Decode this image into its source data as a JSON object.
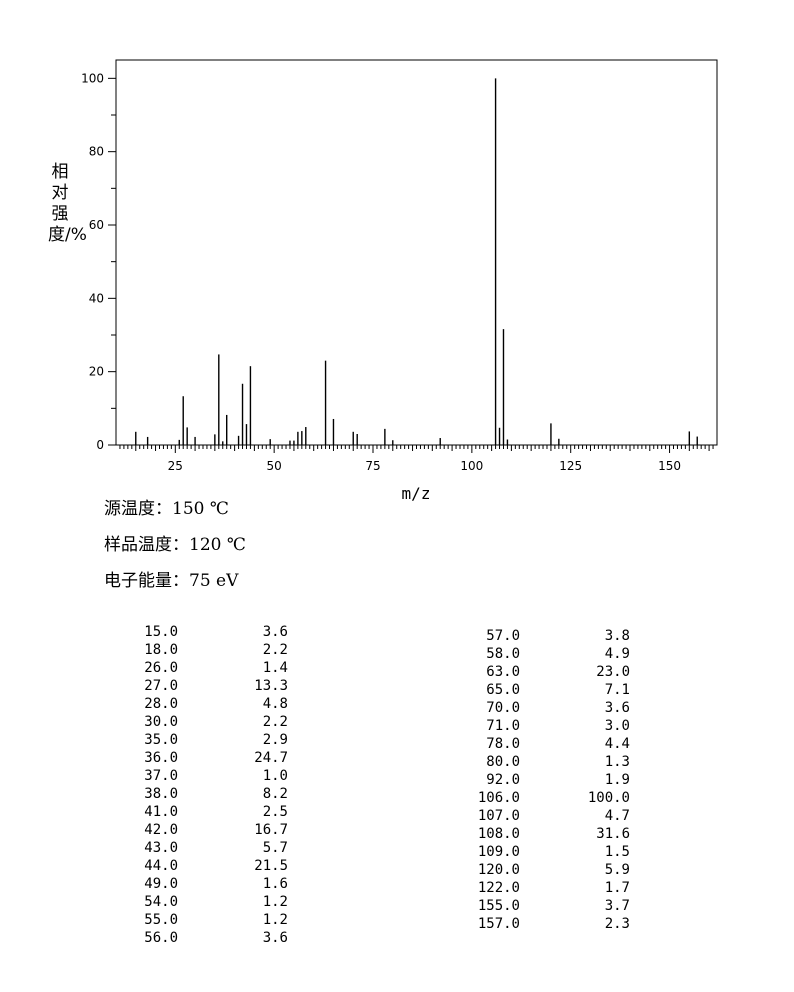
{
  "chart_data": {
    "type": "bar",
    "ylabel": "相对强度/%",
    "xlabel": "m/z",
    "xlim": [
      10,
      162
    ],
    "ylim": [
      0,
      105
    ],
    "x_ticks": [
      "25",
      "50",
      "75",
      "100",
      "125",
      "150"
    ],
    "y_ticks": [
      "0",
      "20",
      "40",
      "60",
      "80",
      "100"
    ],
    "peaks": [
      {
        "mz": 15.0,
        "intensity": 3.6
      },
      {
        "mz": 18.0,
        "intensity": 2.2
      },
      {
        "mz": 26.0,
        "intensity": 1.4
      },
      {
        "mz": 27.0,
        "intensity": 13.3
      },
      {
        "mz": 28.0,
        "intensity": 4.8
      },
      {
        "mz": 30.0,
        "intensity": 2.2
      },
      {
        "mz": 35.0,
        "intensity": 2.9
      },
      {
        "mz": 36.0,
        "intensity": 24.7
      },
      {
        "mz": 37.0,
        "intensity": 1.0
      },
      {
        "mz": 38.0,
        "intensity": 8.2
      },
      {
        "mz": 41.0,
        "intensity": 2.5
      },
      {
        "mz": 42.0,
        "intensity": 16.7
      },
      {
        "mz": 43.0,
        "intensity": 5.7
      },
      {
        "mz": 44.0,
        "intensity": 21.5
      },
      {
        "mz": 49.0,
        "intensity": 1.6
      },
      {
        "mz": 54.0,
        "intensity": 1.2
      },
      {
        "mz": 55.0,
        "intensity": 1.2
      },
      {
        "mz": 56.0,
        "intensity": 3.6
      },
      {
        "mz": 57.0,
        "intensity": 3.8
      },
      {
        "mz": 58.0,
        "intensity": 4.9
      },
      {
        "mz": 63.0,
        "intensity": 23.0
      },
      {
        "mz": 65.0,
        "intensity": 7.1
      },
      {
        "mz": 70.0,
        "intensity": 3.6
      },
      {
        "mz": 71.0,
        "intensity": 3.0
      },
      {
        "mz": 78.0,
        "intensity": 4.4
      },
      {
        "mz": 80.0,
        "intensity": 1.3
      },
      {
        "mz": 92.0,
        "intensity": 1.9
      },
      {
        "mz": 106.0,
        "intensity": 100.0
      },
      {
        "mz": 107.0,
        "intensity": 4.7
      },
      {
        "mz": 108.0,
        "intensity": 31.6
      },
      {
        "mz": 109.0,
        "intensity": 1.5
      },
      {
        "mz": 120.0,
        "intensity": 5.9
      },
      {
        "mz": 122.0,
        "intensity": 1.7
      },
      {
        "mz": 155.0,
        "intensity": 3.7
      },
      {
        "mz": 157.0,
        "intensity": 2.3
      }
    ],
    "grid": false
  },
  "conditions": {
    "source_temp": "源温度：150 ℃",
    "sample_temp": "样品温度：120 ℃",
    "electron_energy": "电子能量：75 eV"
  },
  "table_left": [
    [
      "15.0",
      "3.6"
    ],
    [
      "18.0",
      "2.2"
    ],
    [
      "26.0",
      "1.4"
    ],
    [
      "27.0",
      "13.3"
    ],
    [
      "28.0",
      "4.8"
    ],
    [
      "30.0",
      "2.2"
    ],
    [
      "35.0",
      "2.9"
    ],
    [
      "36.0",
      "24.7"
    ],
    [
      "37.0",
      "1.0"
    ],
    [
      "38.0",
      "8.2"
    ],
    [
      "41.0",
      "2.5"
    ],
    [
      "42.0",
      "16.7"
    ],
    [
      "43.0",
      "5.7"
    ],
    [
      "44.0",
      "21.5"
    ],
    [
      "49.0",
      "1.6"
    ],
    [
      "54.0",
      "1.2"
    ],
    [
      "55.0",
      "1.2"
    ],
    [
      "56.0",
      "3.6"
    ]
  ],
  "table_right": [
    [
      "57.0",
      "3.8"
    ],
    [
      "58.0",
      "4.9"
    ],
    [
      "63.0",
      "23.0"
    ],
    [
      "65.0",
      "7.1"
    ],
    [
      "70.0",
      "3.6"
    ],
    [
      "71.0",
      "3.0"
    ],
    [
      "78.0",
      "4.4"
    ],
    [
      "80.0",
      "1.3"
    ],
    [
      "92.0",
      "1.9"
    ],
    [
      "106.0",
      "100.0"
    ],
    [
      "107.0",
      "4.7"
    ],
    [
      "108.0",
      "31.6"
    ],
    [
      "109.0",
      "1.5"
    ],
    [
      "120.0",
      "5.9"
    ],
    [
      "122.0",
      "1.7"
    ],
    [
      "155.0",
      "3.7"
    ],
    [
      "157.0",
      "2.3"
    ]
  ]
}
